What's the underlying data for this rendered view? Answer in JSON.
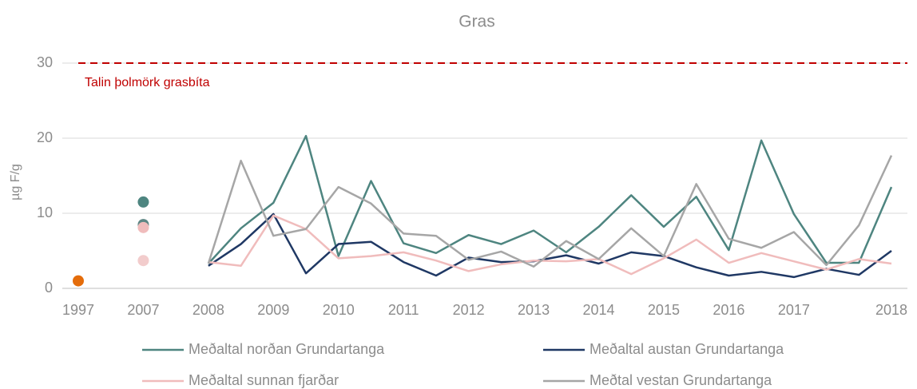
{
  "chart_data": {
    "type": "line",
    "title": "Gras",
    "y_label": "µg F/g",
    "categories": [
      "1997",
      null,
      "2007",
      null,
      "2008",
      null,
      "2009",
      null,
      "2010",
      null,
      "2011",
      null,
      "2012",
      null,
      "2013",
      null,
      "2014",
      null,
      "2015",
      null,
      "2016",
      null,
      "2017",
      null,
      null,
      "2018"
    ],
    "ylim": [
      0,
      30
    ],
    "yticks": [
      0,
      10,
      20,
      30
    ],
    "grid": true,
    "threshold": {
      "value": 30,
      "label": "Talin þolmörk grasbíta",
      "color": "#c00000"
    },
    "series": [
      {
        "name": "Meðaltal norðan Grundartanga",
        "color": "#4e8580",
        "values": [
          null,
          null,
          null,
          null,
          3.3,
          8.0,
          11.4,
          20.3,
          4.3,
          14.3,
          6.0,
          4.7,
          7.1,
          5.9,
          7.7,
          4.8,
          8.2,
          12.4,
          8.2,
          12.2,
          5.1,
          19.7,
          9.9,
          3.4,
          3.4,
          13.5
        ]
      },
      {
        "name": "Meðaltal austan Grundartanga",
        "color": "#1f3864",
        "values": [
          null,
          null,
          null,
          null,
          3.0,
          5.9,
          9.9,
          2.0,
          5.9,
          6.2,
          3.5,
          1.7,
          4.1,
          3.5,
          3.6,
          4.4,
          3.3,
          4.8,
          4.3,
          2.8,
          1.7,
          2.2,
          1.5,
          2.6,
          1.8,
          5.0
        ]
      },
      {
        "name": "Meðaltal sunnan fjarðar",
        "color": "#f0bcbc",
        "values": [
          null,
          null,
          null,
          null,
          3.5,
          3.0,
          9.7,
          7.9,
          4.0,
          4.3,
          4.8,
          3.7,
          2.3,
          3.2,
          3.7,
          3.6,
          3.9,
          1.9,
          4.0,
          6.5,
          3.4,
          4.7,
          3.6,
          2.5,
          3.9,
          3.3
        ]
      },
      {
        "name": "Meðtal vestan Grundartanga",
        "color": "#a6a6a6",
        "values": [
          null,
          null,
          null,
          null,
          3.3,
          17.0,
          7.0,
          7.9,
          13.5,
          11.3,
          7.3,
          7.0,
          3.8,
          4.9,
          2.9,
          6.3,
          3.9,
          8.0,
          4.3,
          13.9,
          6.6,
          5.4,
          7.5,
          3.1,
          8.4,
          17.7
        ]
      },
      {
        "style": "dots",
        "color": "#e46c0a",
        "values": [
          1.0,
          null,
          null,
          null,
          null,
          null,
          null,
          null,
          null,
          null,
          null,
          null,
          null,
          null,
          null,
          null,
          null,
          null,
          null,
          null,
          null,
          null,
          null,
          null,
          null,
          null
        ]
      },
      {
        "style": "dots",
        "color": "#4e8580",
        "values": [
          null,
          null,
          11.5,
          null,
          null,
          null,
          null,
          null,
          null,
          null,
          null,
          null,
          null,
          null,
          null,
          null,
          null,
          null,
          null,
          null,
          null,
          null,
          null,
          null,
          null,
          null
        ]
      },
      {
        "style": "dots",
        "color": "#5f8785",
        "values": [
          null,
          null,
          8.5,
          null,
          null,
          null,
          null,
          null,
          null,
          null,
          null,
          null,
          null,
          null,
          null,
          null,
          null,
          null,
          null,
          null,
          null,
          null,
          null,
          null,
          null,
          null
        ]
      },
      {
        "style": "dots",
        "color": "#f0bcbc",
        "values": [
          null,
          null,
          8.1,
          null,
          null,
          null,
          null,
          null,
          null,
          null,
          null,
          null,
          null,
          null,
          null,
          null,
          null,
          null,
          null,
          null,
          null,
          null,
          null,
          null,
          null,
          null
        ]
      },
      {
        "style": "dots",
        "color": "#f2cccc",
        "values": [
          null,
          null,
          3.7,
          null,
          null,
          null,
          null,
          null,
          null,
          null,
          null,
          null,
          null,
          null,
          null,
          null,
          null,
          null,
          null,
          null,
          null,
          null,
          null,
          null,
          null,
          null
        ]
      }
    ]
  }
}
